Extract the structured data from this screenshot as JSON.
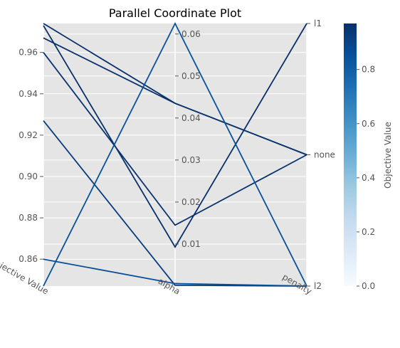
{
  "chart_data": {
    "type": "parallel_coordinates",
    "title": "Parallel Coordinate Plot",
    "axes": [
      {
        "name": "Objective Value",
        "range": [
          0.847,
          0.974
        ],
        "ticks": [
          0.86,
          0.88,
          0.9,
          0.92,
          0.94,
          0.96
        ],
        "tick_labels": [
          "0.86",
          "0.88",
          "0.90",
          "0.92",
          "0.94",
          "0.96"
        ]
      },
      {
        "name": "alpha",
        "range": [
          0.0,
          0.0625
        ],
        "ticks": [
          0.01,
          0.02,
          0.03,
          0.04,
          0.05,
          0.06
        ],
        "tick_labels": [
          "0.01",
          "0.02",
          "0.03",
          "0.04",
          "0.05",
          "0.06"
        ]
      },
      {
        "name": "penalty",
        "type": "categorical",
        "categories": [
          "l2",
          "none",
          "l1"
        ]
      }
    ],
    "lines": [
      {
        "objective": 0.974,
        "alpha": 0.0435,
        "penalty": "none"
      },
      {
        "objective": 0.967,
        "alpha": 0.0435,
        "penalty": "none"
      },
      {
        "objective": 0.973,
        "alpha": 0.0093,
        "penalty": "l1"
      },
      {
        "objective": 0.96,
        "alpha": 0.0145,
        "penalty": "none"
      },
      {
        "objective": 0.927,
        "alpha": 0.0002,
        "penalty": "l2"
      },
      {
        "objective": 0.86,
        "alpha": 0.0006,
        "penalty": "l2"
      },
      {
        "objective": 0.847,
        "alpha": 0.0625,
        "penalty": "l2"
      }
    ],
    "colorbar": {
      "label": "Objective Value",
      "range": [
        0.0,
        0.97
      ],
      "ticks": [
        0.0,
        0.2,
        0.4,
        0.6,
        0.8
      ],
      "tick_labels": [
        "0.0",
        "0.2",
        "0.4",
        "0.6",
        "0.8"
      ],
      "colormap": "Blues"
    },
    "background": "#e5e5e5",
    "grid": true
  }
}
